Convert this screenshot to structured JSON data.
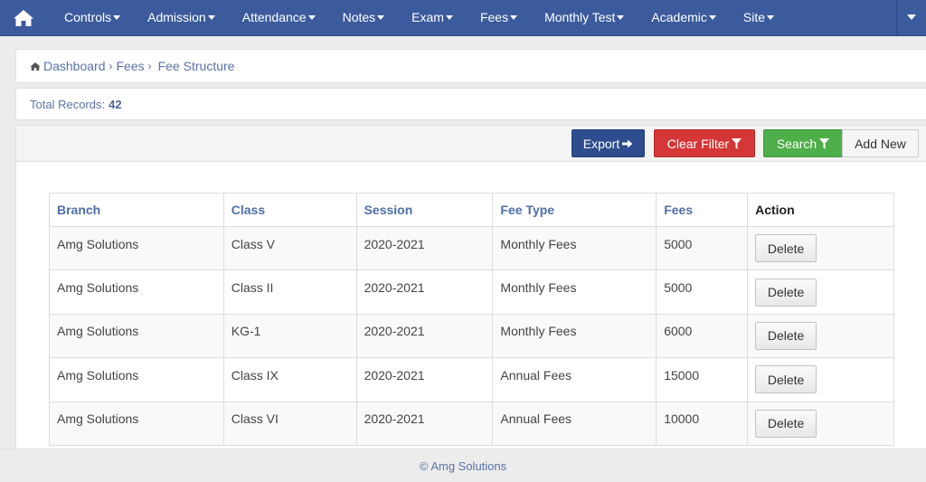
{
  "navbar": {
    "home_icon": "home-icon",
    "items": [
      {
        "label": "Controls"
      },
      {
        "label": "Admission"
      },
      {
        "label": "Attendance"
      },
      {
        "label": "Notes"
      },
      {
        "label": "Exam"
      },
      {
        "label": "Fees"
      },
      {
        "label": "Monthly Test"
      },
      {
        "label": "Academic"
      },
      {
        "label": "Site"
      }
    ],
    "colors": {
      "background": "#3b5b9d",
      "text": "#ffffff"
    }
  },
  "breadcrumb": {
    "home_icon": "home-icon",
    "items": [
      {
        "label": "Dashboard"
      },
      {
        "label": "Fees"
      }
    ],
    "current": "Fee Structure"
  },
  "records": {
    "label": "Total Records:",
    "count": "42"
  },
  "toolbar": {
    "export_label": "Export",
    "export_icon": "arrow-right-icon",
    "clear_filter_label": "Clear Filter",
    "clear_filter_icon": "filter-icon",
    "search_label": "Search",
    "search_icon": "filter-icon",
    "add_new_label": "Add New",
    "colors": {
      "export": "#2e4d8f",
      "clear_filter": "#d53637",
      "search": "#4eae4a"
    }
  },
  "table": {
    "headers": {
      "branch": "Branch",
      "class": "Class",
      "session": "Session",
      "fee_type": "Fee Type",
      "fees": "Fees",
      "action": "Action"
    },
    "rows": [
      {
        "branch": "Amg Solutions",
        "class": "Class V",
        "session": "2020-2021",
        "fee_type": "Monthly Fees",
        "fees": "5000",
        "action": "Delete"
      },
      {
        "branch": "Amg Solutions",
        "class": "Class II",
        "session": "2020-2021",
        "fee_type": "Monthly Fees",
        "fees": "5000",
        "action": "Delete"
      },
      {
        "branch": "Amg Solutions",
        "class": "KG-1",
        "session": "2020-2021",
        "fee_type": "Monthly Fees",
        "fees": "6000",
        "action": "Delete"
      },
      {
        "branch": "Amg Solutions",
        "class": "Class IX",
        "session": "2020-2021",
        "fee_type": "Annual Fees",
        "fees": "15000",
        "action": "Delete"
      },
      {
        "branch": "Amg Solutions",
        "class": "Class VI",
        "session": "2020-2021",
        "fee_type": "Annual Fees",
        "fees": "10000",
        "action": "Delete"
      }
    ]
  },
  "footer": {
    "text": "© Amg Solutions"
  }
}
